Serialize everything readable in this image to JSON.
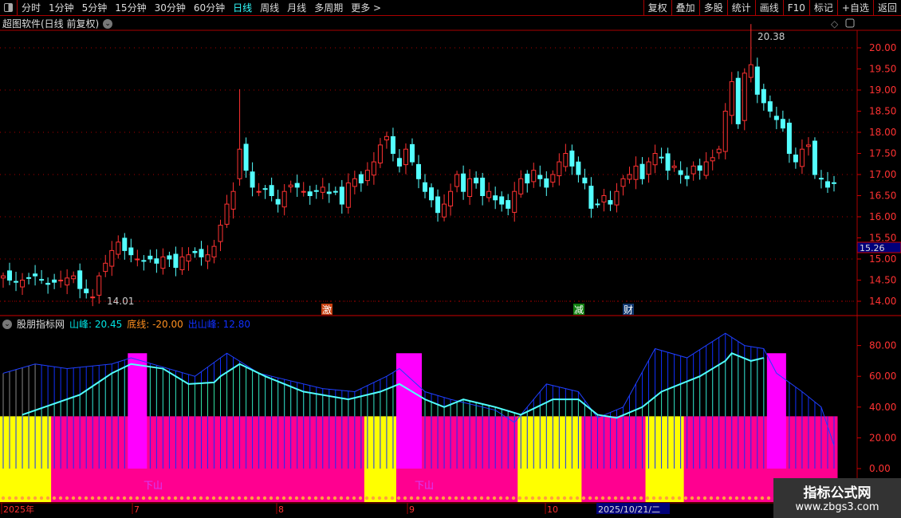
{
  "toolbar": {
    "periods": [
      "分时",
      "1分钟",
      "5分钟",
      "15分钟",
      "30分钟",
      "60分钟",
      "日线",
      "周线",
      "月线",
      "多周期",
      "更多 >"
    ],
    "active": "日线",
    "right_buttons": [
      "复权",
      "叠加",
      "多股",
      "统计",
      "画线",
      "F10",
      "标记",
      "+自选",
      "返回"
    ]
  },
  "main_title": "超图软件(日线 前复权)",
  "price_axis": [
    "20.00",
    "19.50",
    "19.00",
    "18.50",
    "18.00",
    "17.50",
    "17.00",
    "16.50",
    "16.00",
    "15.50",
    "15.00",
    "14.50",
    "14.00"
  ],
  "current_price_label": "15.26",
  "high_label": "20.38",
  "low_label": "14.01",
  "markers": [
    {
      "text": "激",
      "color": "#c84010"
    },
    {
      "text": "减",
      "color": "#108010"
    },
    {
      "text": "财",
      "color": "#103870"
    }
  ],
  "indicator": {
    "name": "股朋指标网",
    "items": [
      {
        "label": "山峰: 20.45",
        "color": "#00e5e5"
      },
      {
        "label": "底线: -20.00",
        "color": "#ff9020"
      },
      {
        "label": "出山峰: 12.80",
        "color": "#1030ff"
      }
    ],
    "axis": [
      "80.00",
      "60.00",
      "40.00",
      "20.00",
      "0.00"
    ],
    "band_label": "下山"
  },
  "date_axis": [
    "2025年",
    "7",
    "8",
    "9",
    "10"
  ],
  "cursor_date": "2025/10/21/二",
  "watermark": {
    "title": "指标公式网",
    "url": "www.zbgs3.com"
  },
  "chart_data": {
    "type": "candlestick",
    "closes": [
      14.6,
      14.5,
      14.45,
      14.5,
      14.55,
      14.6,
      14.5,
      14.4,
      14.45,
      14.5,
      14.55,
      14.6,
      14.3,
      14.2,
      14.1,
      14.6,
      14.9,
      15.2,
      15.4,
      15.2,
      15.1,
      15.0,
      14.95,
      15.0,
      14.9,
      15.05,
      15.0,
      14.8,
      15.05,
      15.1,
      15.15,
      15.05,
      15.1,
      15.3,
      15.8,
      16.3,
      16.6,
      17.6,
      17.1,
      16.7,
      16.6,
      16.65,
      16.5,
      16.3,
      16.6,
      16.75,
      16.7,
      16.6,
      16.5,
      16.6,
      16.7,
      16.55,
      16.6,
      16.3,
      16.8,
      16.9,
      16.8,
      17.1,
      17.3,
      17.7,
      17.9,
      17.5,
      17.2,
      17.6,
      17.3,
      16.9,
      16.6,
      16.4,
      16.1,
      16.3,
      16.6,
      17.0,
      16.6,
      16.9,
      16.8,
      16.5,
      16.6,
      16.4,
      16.3,
      16.2,
      16.6,
      16.9,
      16.8,
      17.1,
      16.9,
      16.7,
      17.0,
      17.3,
      17.5,
      17.2,
      17.0,
      16.8,
      16.2,
      16.3,
      16.5,
      16.3,
      16.6,
      16.9,
      17.0,
      17.2,
      16.9,
      17.3,
      17.5,
      17.4,
      17.1,
      17.2,
      17.0,
      16.9,
      17.2,
      17.1,
      17.3,
      17.4,
      17.6,
      18.5,
      19.2,
      18.2,
      19.4,
      19.6,
      18.9,
      18.7,
      18.5,
      18.3,
      18.1,
      17.5,
      17.3,
      17.6,
      17.7,
      17.0,
      16.9,
      16.7,
      16.8
    ],
    "ylim": [
      13.8,
      20.5
    ],
    "indicator_ylim": [
      -8,
      95
    ],
    "shanfeng": [
      [
        3,
        35
      ],
      [
        12,
        48
      ],
      [
        17,
        62
      ],
      [
        20,
        68
      ],
      [
        25,
        65
      ],
      [
        29,
        55
      ],
      [
        33,
        56
      ],
      [
        34,
        60
      ],
      [
        37,
        68
      ],
      [
        41,
        60
      ],
      [
        47,
        50
      ],
      [
        54,
        45
      ],
      [
        59,
        50
      ],
      [
        62,
        55
      ],
      [
        66,
        45
      ],
      [
        69,
        40
      ],
      [
        72,
        45
      ],
      [
        77,
        40
      ],
      [
        81,
        35
      ],
      [
        86,
        45
      ],
      [
        90,
        45
      ],
      [
        93,
        35
      ],
      [
        96,
        33
      ],
      [
        100,
        40
      ],
      [
        103,
        50
      ],
      [
        106,
        55
      ],
      [
        109,
        60
      ],
      [
        113,
        70
      ],
      [
        114,
        75
      ],
      [
        117,
        70
      ],
      [
        119,
        72
      ]
    ],
    "chushanfeng": [
      [
        0,
        62
      ],
      [
        5,
        68
      ],
      [
        10,
        65
      ],
      [
        17,
        68
      ],
      [
        20,
        72
      ],
      [
        30,
        60
      ],
      [
        35,
        75
      ],
      [
        40,
        62
      ],
      [
        50,
        52
      ],
      [
        55,
        50
      ],
      [
        60,
        60
      ],
      [
        62,
        65
      ],
      [
        66,
        50
      ],
      [
        70,
        45
      ],
      [
        77,
        38
      ],
      [
        80,
        30
      ],
      [
        85,
        55
      ],
      [
        90,
        50
      ],
      [
        93,
        33
      ],
      [
        97,
        40
      ],
      [
        102,
        78
      ],
      [
        107,
        72
      ],
      [
        110,
        80
      ],
      [
        113,
        88
      ],
      [
        116,
        80
      ],
      [
        119,
        78
      ],
      [
        121,
        62
      ],
      [
        125,
        50
      ],
      [
        128,
        40
      ],
      [
        130,
        15
      ]
    ],
    "base_level": 34,
    "peak_level": 75,
    "peak_ranges": [
      [
        20,
        23
      ],
      [
        62,
        66
      ],
      [
        120,
        123
      ]
    ],
    "yellow_ranges": [
      [
        0,
        8
      ],
      [
        57,
        62
      ],
      [
        81,
        91
      ],
      [
        101,
        107
      ]
    ],
    "colors": {
      "up": "#ff3232",
      "down": "#54ffff",
      "pink": "#ff0090",
      "yellow": "#ffff00",
      "magenta": "#ff00ff"
    }
  }
}
